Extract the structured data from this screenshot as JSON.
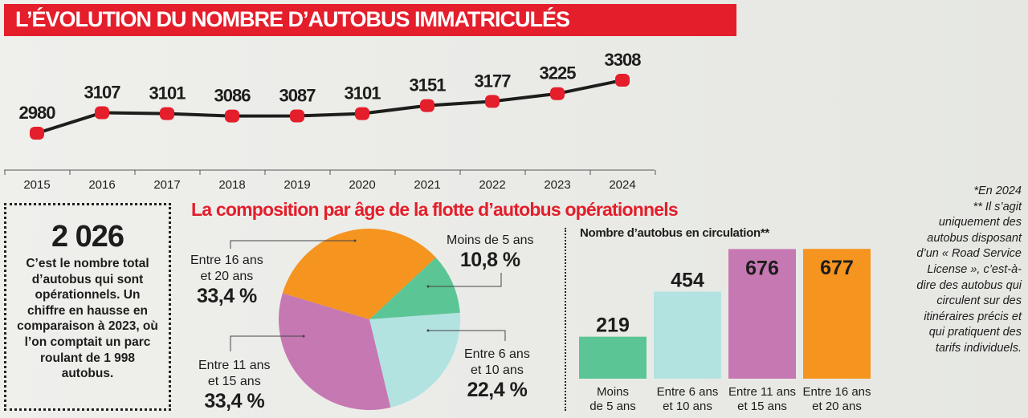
{
  "chart_data": [
    {
      "type": "line",
      "title": "L’ÉVOLUTION DU NOMBRE D’AUTOBUS IMMATRICULÉS",
      "x": [
        "2015",
        "2016",
        "2017",
        "2018",
        "2019",
        "2020",
        "2021",
        "2022",
        "2023",
        "2024"
      ],
      "values": [
        2980,
        3107,
        3101,
        3086,
        3087,
        3101,
        3151,
        3177,
        3225,
        3308
      ],
      "data_labels": [
        "2980",
        "3107",
        "3101",
        "3086",
        "3087",
        "3101",
        "3151",
        "3177",
        "3225",
        "3308"
      ],
      "line_color": "#1d1d1b",
      "marker_color": "#e41e2b"
    },
    {
      "type": "pie",
      "title": "La composition par âge de la flotte d’autobus opérationnels",
      "slices": [
        {
          "label": "Moins de 5 ans",
          "value": 10.8,
          "value_label": "10,8 %",
          "color": "#5cc595"
        },
        {
          "label": "Entre 6 ans et 10 ans",
          "value": 22.4,
          "value_label": "22,4 %",
          "color": "#b2e3e1"
        },
        {
          "label": "Entre 11 ans et 15 ans",
          "value": 33.4,
          "value_label": "33,4 %",
          "color": "#c678b3"
        },
        {
          "label": "Entre 16 ans et 20 ans",
          "value": 33.4,
          "value_label": "33,4 %",
          "color": "#f5941f"
        }
      ],
      "label_lines": {
        "moins5": [
          "Moins de 5 ans"
        ],
        "e6": [
          "Entre 6 ans",
          "et 10 ans"
        ],
        "e11": [
          "Entre 11 ans",
          "et 15 ans"
        ],
        "e16": [
          "Entre 16 ans",
          "et 20 ans"
        ]
      }
    },
    {
      "type": "bar",
      "title": "Nombre d’autobus en circulation**",
      "categories": [
        [
          "Moins",
          "de 5 ans"
        ],
        [
          "Entre 6 ans",
          "et 10 ans"
        ],
        [
          "Entre 11 ans",
          "et 15 ans"
        ],
        [
          "Entre 16 ans",
          "et 20 ans"
        ]
      ],
      "values": [
        219,
        454,
        676,
        677
      ],
      "colors": [
        "#5cc595",
        "#b2e3e1",
        "#c678b3",
        "#f5941f"
      ]
    }
  ],
  "stat": {
    "number": "2 026",
    "text": "C’est le nombre total d’autobus qui sont opérationnels. Un chiffre en hausse en comparaison à 2023, où l’on comptait un parc roulant de 1 998 autobus."
  },
  "notes": {
    "a": "*En 2024",
    "b": "** Il s’agit uniquement des autobus disposant d’un « Road Service License », c’est-à-dire des autobus qui circulent sur des itinéraires précis et qui pratiquent des tarifs individuels."
  }
}
